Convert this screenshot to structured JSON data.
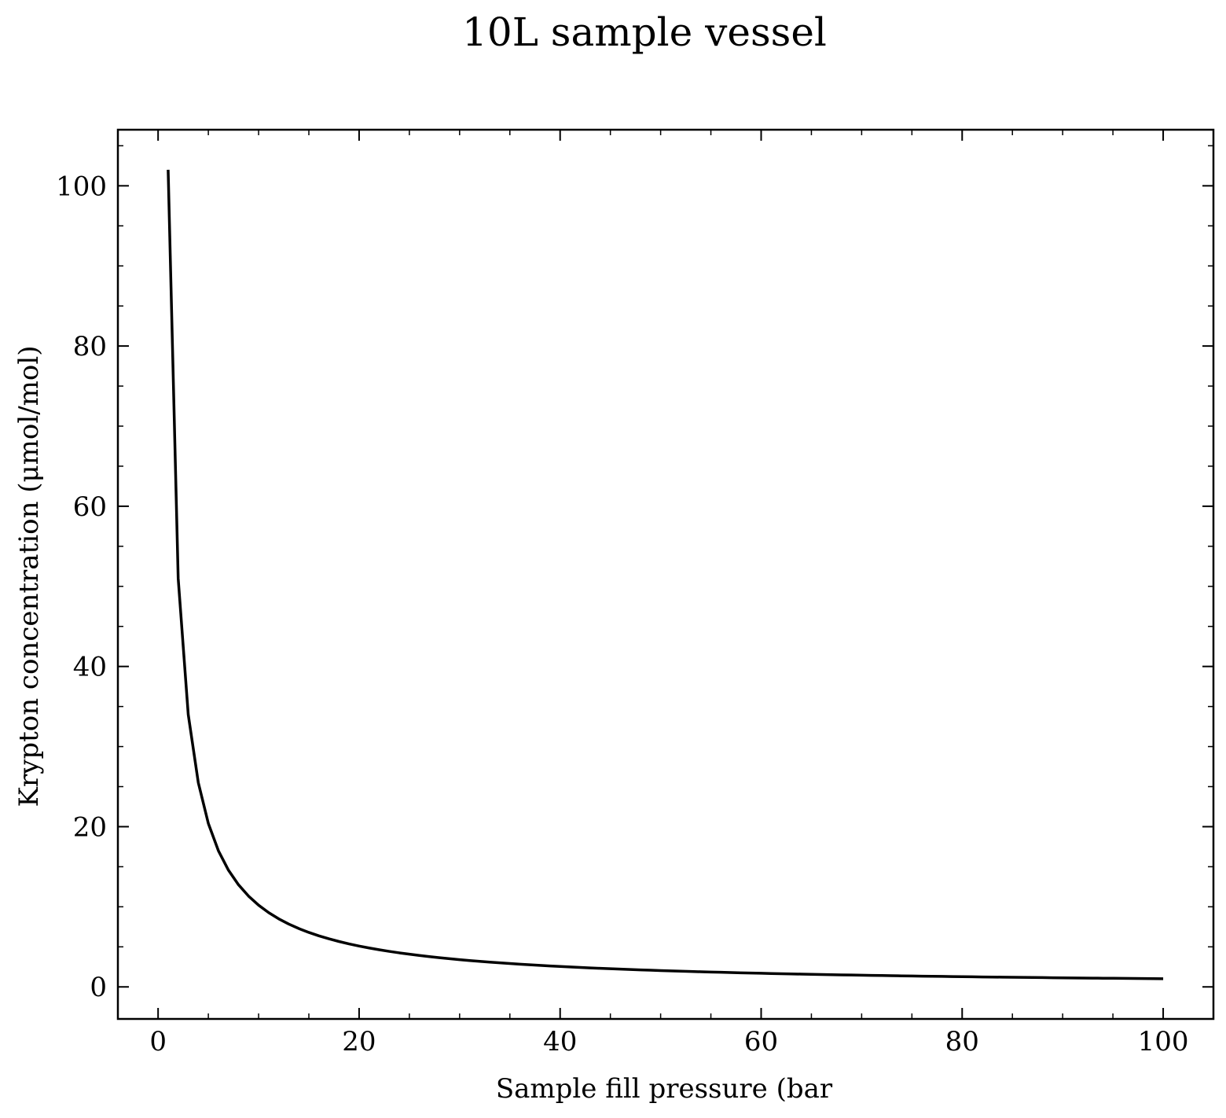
{
  "chart_data": {
    "type": "line",
    "title": "10L sample vessel",
    "xlabel": "Sample fill pressure (bar",
    "ylabel": "Krypton concentration (μmol/mol)",
    "xlim": [
      -4,
      105
    ],
    "ylim": [
      -4,
      107
    ],
    "xticks": [
      0,
      20,
      40,
      60,
      80,
      100
    ],
    "yticks": [
      0,
      20,
      40,
      60,
      80,
      100
    ],
    "xtick_labels": [
      "0",
      "20",
      "40",
      "60",
      "80",
      "100"
    ],
    "ytick_labels": [
      "0",
      "20",
      "40",
      "60",
      "80",
      "100"
    ],
    "x_minor_step": 5,
    "y_minor_step": 5,
    "grid": false,
    "legend": "none",
    "series": [
      {
        "color": "#000000",
        "x_start": 1,
        "x_end": 100,
        "x_step": 1,
        "formula_constant": 102
      }
    ]
  }
}
